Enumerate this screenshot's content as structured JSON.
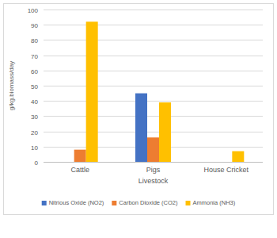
{
  "chart_data": {
    "type": "bar",
    "x_label": "Livestock",
    "y_label": "g/kg.biomass/day",
    "categories": [
      "Cattle",
      "Pigs",
      "House Cricket"
    ],
    "series": [
      {
        "name": "Nitrious Oxide (NO2)",
        "color": "#4472c4",
        "values": [
          0,
          45,
          0
        ]
      },
      {
        "name": "Carbon Dioxide (CO2)",
        "color": "#ed7d31",
        "values": [
          8,
          16,
          0
        ]
      },
      {
        "name": "Ammonia (NH3)",
        "color": "#ffc000",
        "values": [
          92,
          39,
          7
        ]
      }
    ],
    "ylim": [
      0,
      100
    ],
    "yticks": [
      0,
      10,
      20,
      30,
      40,
      50,
      60,
      70,
      80,
      90,
      100
    ],
    "grid": true,
    "legend": "bottom"
  }
}
